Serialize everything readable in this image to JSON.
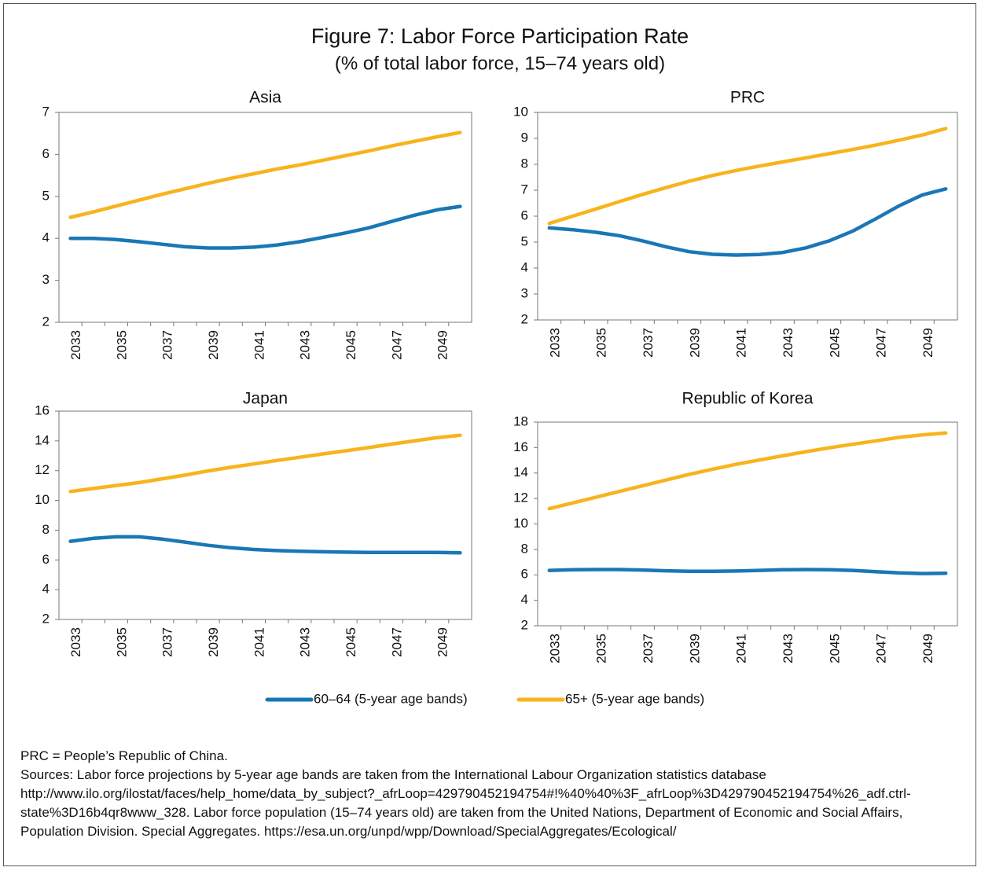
{
  "title": "Figure 7: Labor Force Participation Rate",
  "subtitle": "(% of total labor force, 15–74 years old)",
  "legend": [
    {
      "name": "60–64 (5-year age bands)",
      "color": "#1a77b6"
    },
    {
      "name": "65+ (5-year age bands)",
      "color": "#f8b31d"
    }
  ],
  "chart_data": [
    {
      "type": "line",
      "title": "Asia",
      "categories": [
        "2033",
        null,
        "2035",
        null,
        "2037",
        null,
        "2039",
        null,
        "2041",
        null,
        "2043",
        null,
        "2045",
        null,
        "2047",
        null,
        "2049",
        null
      ],
      "series": [
        {
          "values": [
            4.0,
            4.0,
            3.97,
            3.92,
            3.86,
            3.8,
            3.77,
            3.77,
            3.79,
            3.84,
            3.92,
            4.02,
            4.13,
            4.25,
            4.4,
            4.55,
            4.68,
            4.76
          ]
        },
        {
          "values": [
            4.5,
            4.63,
            4.77,
            4.91,
            5.05,
            5.18,
            5.31,
            5.43,
            5.54,
            5.65,
            5.75,
            5.86,
            5.97,
            6.08,
            6.2,
            6.31,
            6.42,
            6.52
          ]
        }
      ],
      "ylim": [
        2,
        7
      ],
      "yticks": [
        2,
        3,
        4,
        5,
        6,
        7
      ]
    },
    {
      "type": "line",
      "title": "PRC",
      "categories": [
        "2033",
        null,
        "2035",
        null,
        "2037",
        null,
        "2039",
        null,
        "2041",
        null,
        "2043",
        null,
        "2045",
        null,
        "2047",
        null,
        "2049",
        null
      ],
      "series": [
        {
          "values": [
            5.55,
            5.48,
            5.38,
            5.25,
            5.05,
            4.82,
            4.63,
            4.53,
            4.5,
            4.52,
            4.6,
            4.78,
            5.05,
            5.42,
            5.9,
            6.4,
            6.82,
            7.05
          ]
        },
        {
          "values": [
            5.72,
            6.0,
            6.28,
            6.56,
            6.84,
            7.1,
            7.35,
            7.57,
            7.76,
            7.93,
            8.09,
            8.25,
            8.41,
            8.57,
            8.74,
            8.93,
            9.13,
            9.38
          ]
        }
      ],
      "ylim": [
        2,
        10
      ],
      "yticks": [
        2,
        3,
        4,
        5,
        6,
        7,
        8,
        9,
        10
      ]
    },
    {
      "type": "line",
      "title": "Japan",
      "categories": [
        "2033",
        null,
        "2035",
        null,
        "2037",
        null,
        "2039",
        null,
        "2041",
        null,
        "2043",
        null,
        "2045",
        null,
        "2047",
        null,
        "2049",
        null
      ],
      "series": [
        {
          "values": [
            7.25,
            7.45,
            7.55,
            7.55,
            7.4,
            7.2,
            6.98,
            6.82,
            6.7,
            6.63,
            6.58,
            6.55,
            6.52,
            6.5,
            6.5,
            6.5,
            6.5,
            6.48
          ]
        },
        {
          "values": [
            10.6,
            10.8,
            11.0,
            11.2,
            11.45,
            11.7,
            11.98,
            12.23,
            12.45,
            12.68,
            12.9,
            13.12,
            13.33,
            13.55,
            13.78,
            14.0,
            14.22,
            14.38
          ]
        }
      ],
      "ylim": [
        2,
        16
      ],
      "yticks": [
        2,
        4,
        6,
        8,
        10,
        12,
        14,
        16
      ]
    },
    {
      "type": "line",
      "title": "Republic of Korea",
      "categories": [
        "2033",
        null,
        "2035",
        null,
        "2037",
        null,
        "2039",
        null,
        "2041",
        null,
        "2043",
        null,
        "2045",
        null,
        "2047",
        null,
        "2049",
        null
      ],
      "series": [
        {
          "values": [
            6.35,
            6.4,
            6.42,
            6.42,
            6.38,
            6.32,
            6.28,
            6.28,
            6.3,
            6.35,
            6.4,
            6.42,
            6.4,
            6.35,
            6.25,
            6.15,
            6.1,
            6.12
          ]
        },
        {
          "values": [
            11.2,
            11.65,
            12.1,
            12.55,
            13.0,
            13.45,
            13.9,
            14.3,
            14.68,
            15.02,
            15.35,
            15.68,
            15.98,
            16.26,
            16.53,
            16.8,
            17.0,
            17.15
          ]
        }
      ],
      "ylim": [
        2,
        18
      ],
      "yticks": [
        2,
        4,
        6,
        8,
        10,
        12,
        14,
        16,
        18
      ]
    }
  ],
  "notes": [
    "PRC = People’s Republic of China.",
    "Sources: Labor force projections by 5-year age bands are taken from the International Labour Organization statistics database http://www.ilo.org/ilostat/faces/help_home/data_by_subject?_afrLoop=429790452194754#!%40%40%3F_afrLoop%3D429790452194754%26_adf.ctrl-state%3D16b4qr8www_328. Labor force population (15–74 years old) are taken from the United Nations, Department of Economic and Social Affairs, Population Division. Special Aggregates. https://esa.un.org/unpd/wpp/Download/SpecialAggregates/Ecological/"
  ]
}
